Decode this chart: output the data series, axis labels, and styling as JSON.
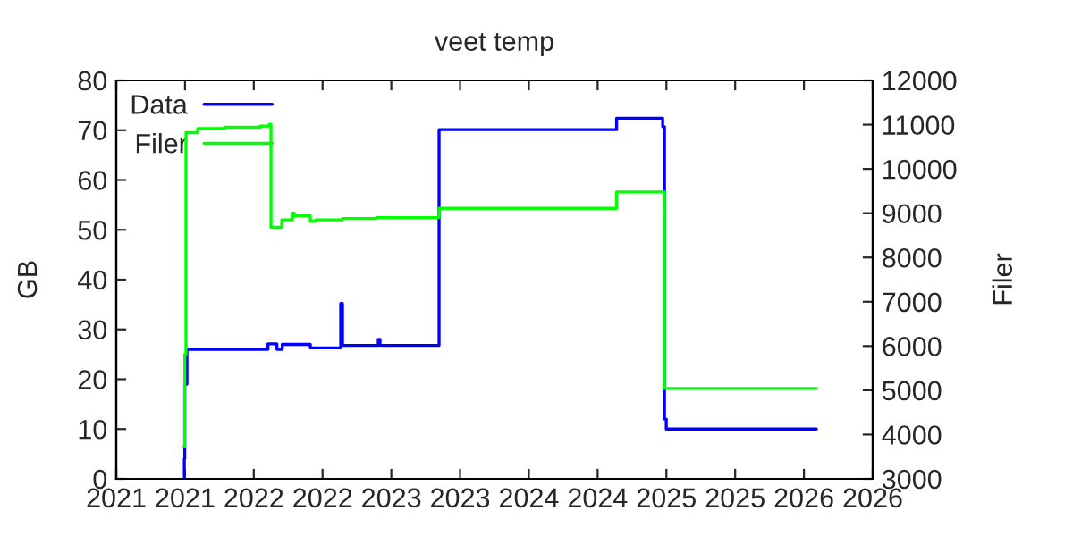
{
  "chart_data": {
    "type": "step",
    "title": "veet temp",
    "ylabel": "GB",
    "y2label": "Filer",
    "xlim": [
      2021,
      2026.5
    ],
    "xticks": [
      2021,
      {
        "value": 2021.5,
        "label": "2021"
      },
      2022,
      {
        "value": 2022.5,
        "label": "2022"
      },
      2023,
      {
        "value": 2023.5,
        "label": "2023"
      },
      2024,
      {
        "value": 2024.5,
        "label": "2024"
      },
      2025,
      {
        "value": 2025.5,
        "label": "2025"
      },
      2026,
      {
        "value": 2026.5,
        "label": "2026"
      }
    ],
    "ylim": [
      0,
      80
    ],
    "yticks": [
      0,
      10,
      20,
      30,
      40,
      50,
      60,
      70,
      80
    ],
    "y2lim": [
      3000,
      12000
    ],
    "y2ticks": [
      3000,
      4000,
      5000,
      6000,
      7000,
      8000,
      9000,
      10000,
      11000,
      12000
    ],
    "legend": "top left",
    "marker": "none",
    "line_style": "solid",
    "grid": false,
    "series": [
      {
        "name": "Data",
        "color": "#0000ff",
        "axis": "y",
        "x": [
          2021.492,
          2021.495,
          2021.498,
          2021.514,
          2022.103,
          2022.168,
          2022.207,
          2022.411,
          2022.632,
          2022.645,
          2022.905,
          2022.918,
          2023.347,
          2024.638,
          2024.973,
          2024.986,
          2024.999,
          2026.091
        ],
        "values": [
          0,
          4,
          19,
          26,
          27.1,
          26,
          27,
          26.3,
          35.2,
          26.8,
          28,
          26.8,
          70.1,
          72.4,
          70.7,
          12,
          10,
          10
        ]
      },
      {
        "name": "Filer",
        "color": "#00ff00",
        "axis": "y2",
        "x": [
          2021.492,
          2021.498,
          2021.507,
          2021.592,
          2021.787,
          2022.047,
          2022.112,
          2022.125,
          2022.203,
          2022.281,
          2022.295,
          2022.411,
          2022.45,
          2022.645,
          2022.892,
          2023.347,
          2024.638,
          2024.986,
          2026.091
        ],
        "values": [
          3730,
          5810,
          10820,
          10910,
          10940,
          10970,
          11010,
          8680,
          8850,
          9000,
          8940,
          8820,
          8850,
          8880,
          8900,
          9110,
          9480,
          5040,
          5040
        ]
      }
    ]
  }
}
